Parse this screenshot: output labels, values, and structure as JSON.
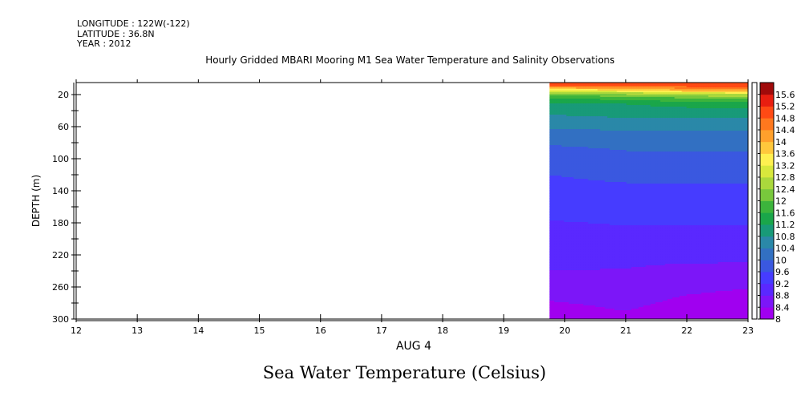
{
  "meta": {
    "longitude": "LONGITUDE : 122W(-122)",
    "latitude": "LATITUDE : 36.8N",
    "year": "YEAR : 2012"
  },
  "title": "Hourly Gridded MBARI Mooring M1 Sea Water Temperature and Salinity Observations",
  "bottom_title": "Sea Water Temperature (Celsius)",
  "chart_data": {
    "type": "heatmap",
    "title": "Hourly Gridded MBARI Mooring M1 Sea Water Temperature and Salinity Observations",
    "xlabel": "AUG  4",
    "ylabel": "DEPTH (m)",
    "x_ticks": [
      12,
      13,
      14,
      15,
      16,
      17,
      18,
      19,
      20,
      21,
      22,
      23
    ],
    "y_ticks": [
      20,
      60,
      100,
      140,
      180,
      220,
      260,
      300
    ],
    "xlim": [
      12,
      23
    ],
    "ylim": [
      300,
      5
    ],
    "data_start_hour": 19.75,
    "colorbar": {
      "levels": [
        8,
        8.4,
        8.8,
        9.2,
        9.6,
        10,
        10.4,
        10.8,
        11.2,
        11.6,
        12,
        12.4,
        12.8,
        13.2,
        13.6,
        14,
        14.4,
        14.8,
        15.2,
        15.6
      ],
      "colors": [
        "#a000f0",
        "#7c16f8",
        "#5a28ff",
        "#463cff",
        "#3a58e0",
        "#3270c2",
        "#2a88a8",
        "#189a78",
        "#1aa64a",
        "#3cb43c",
        "#78c83c",
        "#aad83c",
        "#d8e83c",
        "#fff050",
        "#ffc83c",
        "#ffa02c",
        "#ff781e",
        "#ff4a14",
        "#e81e10",
        "#a00a0a"
      ]
    },
    "profiles": [
      {
        "hour": 19.75,
        "depths": [
          5,
          10,
          13,
          17,
          22,
          30,
          40,
          55,
          70,
          90,
          120,
          150,
          190,
          230,
          270,
          285,
          300
        ],
        "values": [
          15.3,
          14.6,
          13.5,
          12.6,
          11.8,
          11.2,
          10.9,
          10.6,
          10.2,
          9.9,
          9.6,
          9.4,
          9.1,
          8.9,
          8.5,
          8.3,
          8.2
        ]
      },
      {
        "hour": 21,
        "depths": [
          5,
          10,
          14,
          18,
          24,
          32,
          45,
          60,
          80,
          100,
          130,
          170,
          210,
          250,
          280,
          300
        ],
        "values": [
          15.2,
          14.7,
          13.8,
          12.7,
          11.8,
          11.2,
          10.9,
          10.5,
          10.1,
          9.9,
          9.6,
          9.3,
          9.0,
          8.7,
          8.5,
          8.3
        ]
      },
      {
        "hour": 22,
        "depths": [
          5,
          10,
          15,
          19,
          25,
          33,
          45,
          60,
          80,
          100,
          130,
          170,
          210,
          250,
          270,
          290,
          300
        ],
        "values": [
          15.2,
          14.8,
          13.9,
          12.8,
          11.9,
          11.3,
          10.9,
          10.5,
          10.1,
          9.9,
          9.6,
          9.3,
          9.0,
          8.6,
          8.4,
          8.2,
          8.1
        ]
      },
      {
        "hour": 23,
        "depths": [
          5,
          10,
          15,
          20,
          26,
          34,
          45,
          60,
          80,
          100,
          130,
          170,
          210,
          240,
          270,
          290,
          300
        ],
        "values": [
          15.1,
          14.8,
          14.0,
          12.8,
          11.9,
          11.3,
          10.9,
          10.5,
          10.1,
          9.9,
          9.6,
          9.3,
          9.0,
          8.7,
          8.3,
          8.1,
          8.0
        ]
      }
    ]
  }
}
